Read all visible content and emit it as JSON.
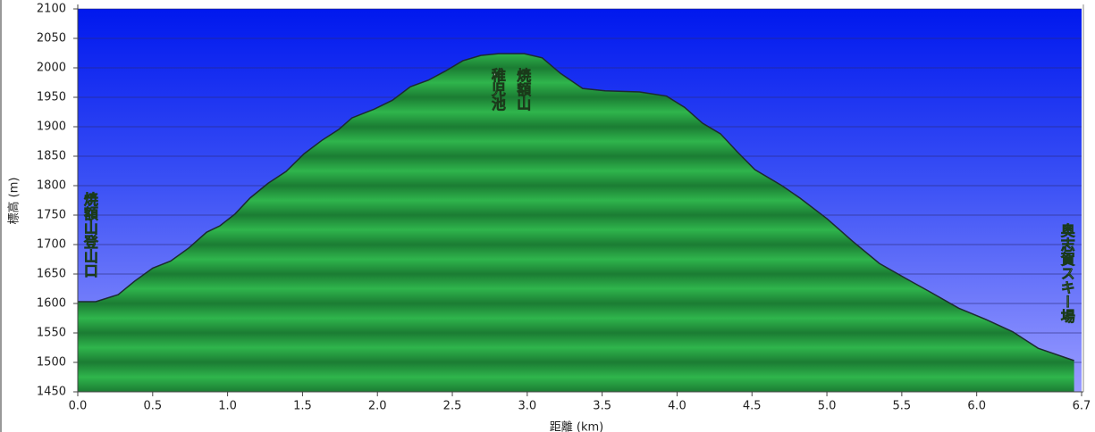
{
  "chart_data": {
    "type": "area",
    "x_label": "距離 (km)",
    "y_label": "標高 (m)",
    "x": [
      0.0,
      0.12,
      0.27,
      0.38,
      0.5,
      0.62,
      0.74,
      0.86,
      0.95,
      1.05,
      1.15,
      1.27,
      1.39,
      1.51,
      1.63,
      1.74,
      1.83,
      1.98,
      2.1,
      2.22,
      2.34,
      2.45,
      2.57,
      2.69,
      2.81,
      2.98,
      3.1,
      3.22,
      3.37,
      3.52,
      3.75,
      3.93,
      4.05,
      4.17,
      4.29,
      4.4,
      4.52,
      4.7,
      4.82,
      5.0,
      5.17,
      5.35,
      5.53,
      5.7,
      5.88,
      6.06,
      6.24,
      6.41,
      6.65
    ],
    "values": [
      1603,
      1603,
      1615,
      1638,
      1660,
      1672,
      1694,
      1721,
      1732,
      1752,
      1779,
      1804,
      1824,
      1854,
      1877,
      1895,
      1915,
      1930,
      1945,
      1968,
      1979,
      1994,
      2012,
      2021,
      2024,
      2024,
      2017,
      1991,
      1965,
      1961,
      1959,
      1952,
      1933,
      1906,
      1888,
      1858,
      1827,
      1800,
      1779,
      1744,
      1706,
      1668,
      1642,
      1618,
      1592,
      1573,
      1552,
      1524,
      1503
    ],
    "xlim": [
      0,
      6.7
    ],
    "xticks": [
      {
        "value": 0,
        "label": "0.0"
      },
      0.5,
      {
        "value": 1,
        "label": "1.0"
      },
      1.5,
      {
        "value": 2,
        "label": "2.0"
      },
      2.5,
      {
        "value": 3,
        "label": "3.0"
      },
      3.5,
      {
        "value": 4,
        "label": "4.0"
      },
      4.5,
      {
        "value": 5,
        "label": "5.0"
      },
      5.5,
      {
        "value": 6,
        "label": "6.0"
      },
      6.7
    ],
    "ylim": [
      1450,
      2100
    ],
    "yticks": [
      1450,
      1500,
      1550,
      1600,
      1650,
      1700,
      1750,
      1800,
      1850,
      1900,
      1950,
      2000,
      2050,
      2100
    ],
    "grid": true,
    "annotations": [
      {
        "text": "焼額山登山口",
        "x": 0.08
      },
      {
        "text": "稚児池",
        "x": 2.8
      },
      {
        "text": "焼額山",
        "x": 2.97
      },
      {
        "text": "奥志賀スキー場",
        "x": 6.6
      }
    ]
  }
}
